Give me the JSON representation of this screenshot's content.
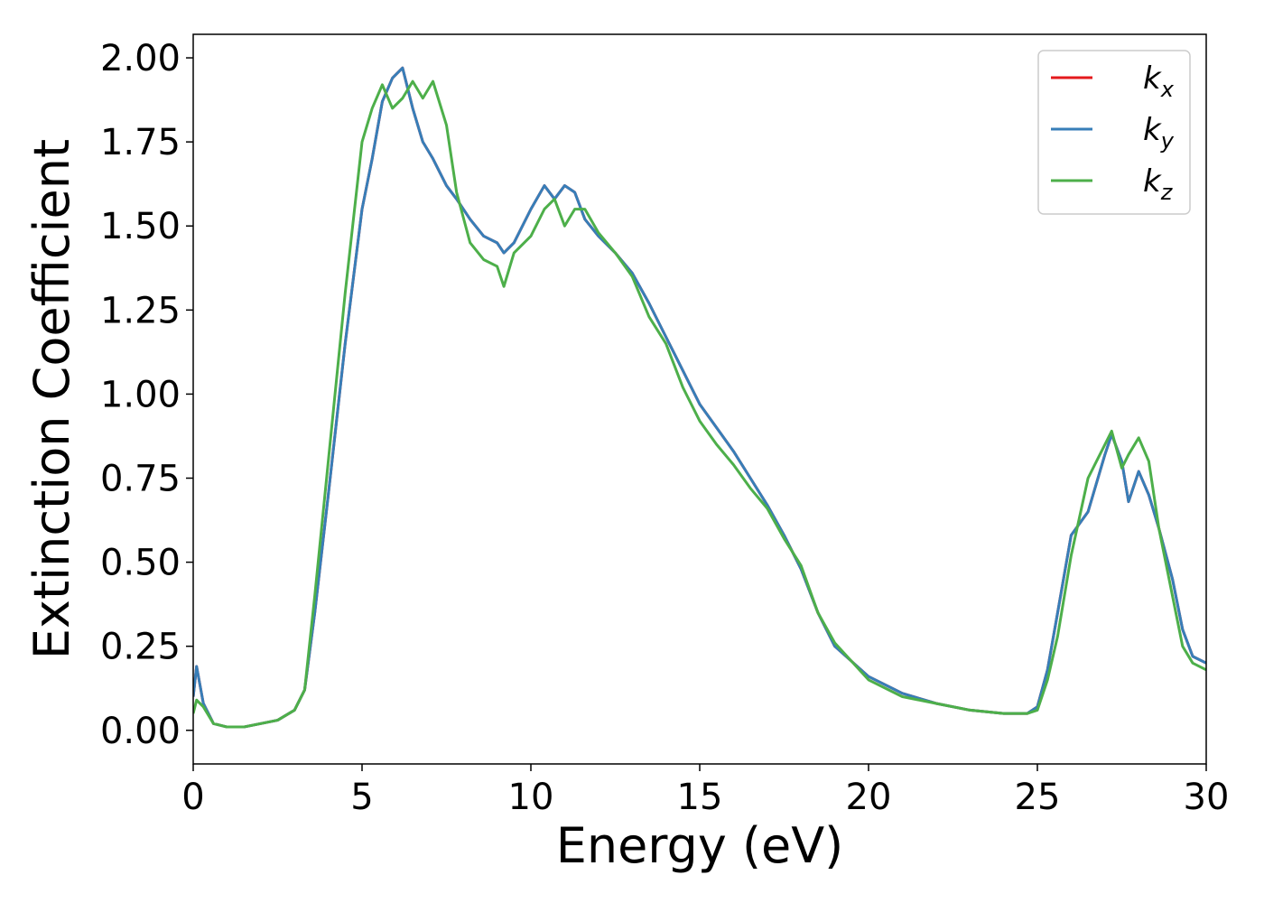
{
  "chart_data": {
    "type": "line",
    "xlabel": "Energy (eV)",
    "ylabel": "Extinction Coefficient",
    "xlim": [
      0,
      30
    ],
    "ylim": [
      -0.1,
      2.07
    ],
    "xticks": [
      0,
      5,
      10,
      15,
      20,
      25,
      30
    ],
    "yticks": [
      {
        "value": 0,
        "label": "0.00"
      },
      {
        "value": 0.25,
        "label": "0.25"
      },
      {
        "value": 0.5,
        "label": "0.50"
      },
      {
        "value": 0.75,
        "label": "0.75"
      },
      {
        "value": 1,
        "label": "1.00"
      },
      {
        "value": 1.25,
        "label": "1.25"
      },
      {
        "value": 1.5,
        "label": "1.50"
      },
      {
        "value": 1.75,
        "label": "1.75"
      },
      {
        "value": 2,
        "label": "2.00"
      }
    ],
    "grid": false,
    "legend": "upper right",
    "x": [
      0,
      0.1,
      0.3,
      0.6,
      1,
      1.5,
      2,
      2.5,
      3,
      3.3,
      3.6,
      4,
      4.5,
      5,
      5.3,
      5.6,
      5.9,
      6.2,
      6.5,
      6.8,
      7.1,
      7.5,
      7.8,
      8.2,
      8.6,
      9,
      9.2,
      9.5,
      10,
      10.4,
      10.7,
      11,
      11.3,
      11.6,
      12,
      12.5,
      13,
      13.5,
      14,
      14.5,
      15,
      15.5,
      16,
      16.5,
      17,
      17.5,
      18,
      18.5,
      19,
      20,
      21,
      22,
      23,
      24,
      24.7,
      25,
      25.3,
      25.6,
      26,
      26.5,
      27,
      27.2,
      27.5,
      27.7,
      28,
      28.3,
      28.6,
      29,
      29.3,
      29.6,
      30
    ],
    "series": [
      {
        "name": "kx",
        "color": "#e41a1c",
        "values": [
          0.1,
          0.19,
          0.08,
          0.02,
          0.01,
          0.01,
          0.02,
          0.03,
          0.06,
          0.12,
          0.35,
          0.7,
          1.15,
          1.55,
          1.7,
          1.87,
          1.94,
          1.97,
          1.85,
          1.75,
          1.7,
          1.62,
          1.58,
          1.52,
          1.47,
          1.45,
          1.42,
          1.45,
          1.55,
          1.62,
          1.58,
          1.62,
          1.6,
          1.52,
          1.47,
          1.42,
          1.36,
          1.27,
          1.17,
          1.07,
          0.97,
          0.9,
          0.83,
          0.75,
          0.67,
          0.58,
          0.48,
          0.35,
          0.25,
          0.16,
          0.11,
          0.08,
          0.06,
          0.05,
          0.05,
          0.07,
          0.18,
          0.35,
          0.58,
          0.65,
          0.82,
          0.88,
          0.8,
          0.68,
          0.77,
          0.7,
          0.6,
          0.45,
          0.3,
          0.22,
          0.2
        ]
      },
      {
        "name": "ky",
        "color": "#377eb8",
        "values": [
          0.1,
          0.19,
          0.08,
          0.02,
          0.01,
          0.01,
          0.02,
          0.03,
          0.06,
          0.12,
          0.35,
          0.7,
          1.15,
          1.55,
          1.7,
          1.87,
          1.94,
          1.97,
          1.85,
          1.75,
          1.7,
          1.62,
          1.58,
          1.52,
          1.47,
          1.45,
          1.42,
          1.45,
          1.55,
          1.62,
          1.58,
          1.62,
          1.6,
          1.52,
          1.47,
          1.42,
          1.36,
          1.27,
          1.17,
          1.07,
          0.97,
          0.9,
          0.83,
          0.75,
          0.67,
          0.58,
          0.48,
          0.35,
          0.25,
          0.16,
          0.11,
          0.08,
          0.06,
          0.05,
          0.05,
          0.07,
          0.18,
          0.35,
          0.58,
          0.65,
          0.82,
          0.88,
          0.8,
          0.68,
          0.77,
          0.7,
          0.6,
          0.45,
          0.3,
          0.22,
          0.2
        ]
      },
      {
        "name": "kz",
        "color": "#4daf4a",
        "values": [
          0.05,
          0.09,
          0.07,
          0.02,
          0.01,
          0.01,
          0.02,
          0.03,
          0.06,
          0.12,
          0.4,
          0.8,
          1.3,
          1.75,
          1.85,
          1.92,
          1.85,
          1.88,
          1.93,
          1.88,
          1.93,
          1.8,
          1.6,
          1.45,
          1.4,
          1.38,
          1.32,
          1.42,
          1.47,
          1.55,
          1.58,
          1.5,
          1.55,
          1.55,
          1.48,
          1.42,
          1.35,
          1.23,
          1.15,
          1.02,
          0.92,
          0.85,
          0.79,
          0.72,
          0.66,
          0.57,
          0.49,
          0.35,
          0.26,
          0.15,
          0.1,
          0.08,
          0.06,
          0.05,
          0.05,
          0.06,
          0.15,
          0.28,
          0.52,
          0.75,
          0.85,
          0.89,
          0.78,
          0.82,
          0.87,
          0.8,
          0.6,
          0.4,
          0.25,
          0.2,
          0.18
        ]
      }
    ]
  }
}
